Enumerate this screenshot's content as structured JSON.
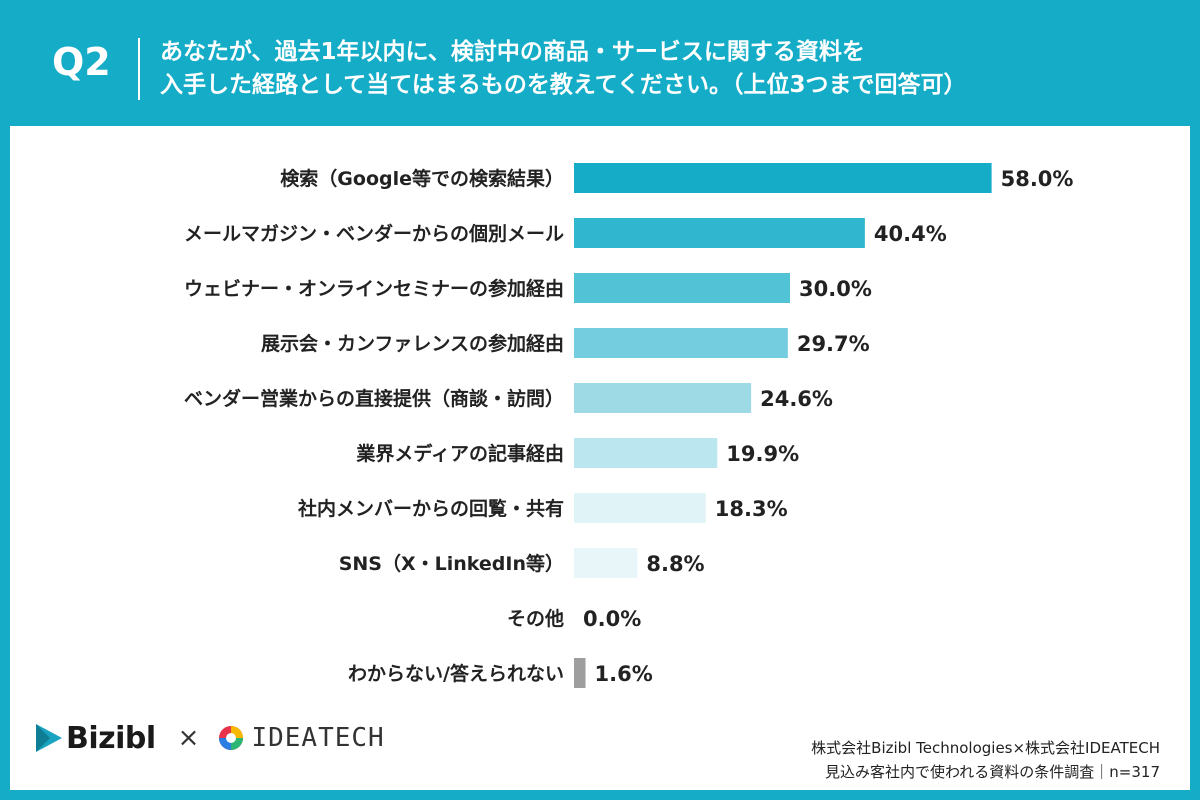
{
  "header": {
    "q_label": "Q2",
    "question_line1": "あなたが、過去1年以内に、検討中の商品・サービスに関する資料を",
    "question_line2": "入手した経路として当てはまるものを教えてください。（上位3つまで回答可）"
  },
  "chart_data": {
    "type": "bar",
    "orientation": "horizontal",
    "categories": [
      "検索（Google等での検索結果）",
      "メールマガジン・ベンダーからの個別メール",
      "ウェビナー・オンラインセミナーの参加経由",
      "展示会・カンファレンスの参加経由",
      "ベンダー営業からの直接提供（商談・訪問）",
      "業界メディアの記事経由",
      "社内メンバーからの回覧・共有",
      "SNS（X・LinkedIn等）",
      "その他",
      "わからない/答えられない"
    ],
    "values": [
      58.0,
      40.4,
      30.0,
      29.7,
      24.6,
      19.9,
      18.3,
      8.8,
      0.0,
      1.6
    ],
    "value_labels": [
      "58.0%",
      "40.4%",
      "30.0%",
      "29.7%",
      "24.6%",
      "19.9%",
      "18.3%",
      "8.8%",
      "0.0%",
      "1.6%"
    ],
    "bar_colors": [
      "#14acc7",
      "#30b7cf",
      "#52c2d6",
      "#73cddf",
      "#9ed9e6",
      "#bce6ef",
      "#e0f4f8",
      "#e8f6fa",
      "#eef8fb",
      "#9e9e9e"
    ],
    "xlim": [
      0,
      100
    ],
    "grid": false
  },
  "footer": {
    "logo_left": "Bizibl",
    "times": "×",
    "logo_right": "IDEATECH",
    "source_line1": "株式会社Bizibl Technologies×株式会社IDEATECH",
    "source_line2": "見込み客社内で使われる資料の条件調査｜n=317"
  },
  "colors": {
    "background": "#14acc7",
    "panel": "#ffffff",
    "text": "#222222"
  }
}
